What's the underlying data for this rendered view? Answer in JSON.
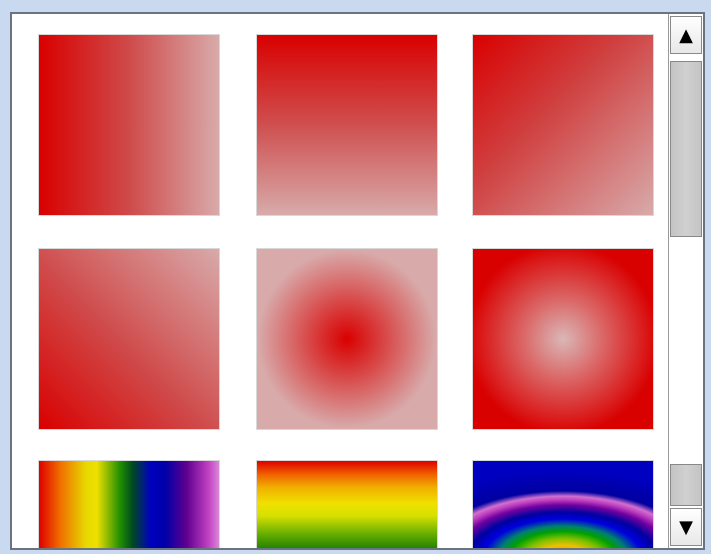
{
  "gallery": {
    "items": [
      {
        "name": "linear-left-to-right"
      },
      {
        "name": "linear-top-to-bottom"
      },
      {
        "name": "linear-diagonal-top-left"
      },
      {
        "name": "linear-diagonal-bottom-left"
      },
      {
        "name": "radial-red-center"
      },
      {
        "name": "radial-light-center"
      },
      {
        "name": "rainbow-horizontal"
      },
      {
        "name": "rainbow-vertical"
      },
      {
        "name": "rainbow-arc"
      }
    ]
  },
  "scrollbar": {
    "up_arrow": "▲",
    "down_arrow": "▼",
    "position_fraction": 0.0
  },
  "colors": {
    "primary_red": "#d90000",
    "light_red": "#d8aaaa",
    "window_bg": "#c9daf0",
    "panel_border": "#6b7380"
  }
}
